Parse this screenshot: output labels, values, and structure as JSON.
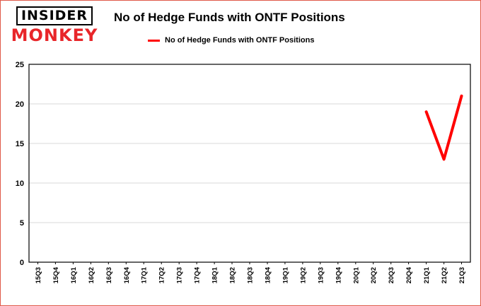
{
  "logo": {
    "line1": "INSIDER",
    "line2": "MONKEY"
  },
  "colors": {
    "line": "#ff0000",
    "logo_red": "#e8262a",
    "grid": "#d9d9d9",
    "axis": "#000000",
    "page_border": "#e05a49"
  },
  "chart_data": {
    "type": "line",
    "title": "No of Hedge Funds with ONTF Positions",
    "xlabel": "",
    "ylabel": "",
    "categories": [
      "15Q3",
      "15Q4",
      "16Q1",
      "16Q2",
      "16Q3",
      "16Q4",
      "17Q1",
      "17Q2",
      "17Q3",
      "17Q4",
      "18Q1",
      "18Q2",
      "18Q3",
      "18Q4",
      "19Q1",
      "19Q2",
      "19Q3",
      "19Q4",
      "20Q1",
      "20Q2",
      "20Q3",
      "20Q4",
      "21Q1",
      "21Q2",
      "21Q3"
    ],
    "series": [
      {
        "name": "No of Hedge Funds with ONTF Positions",
        "color": "#ff0000",
        "values": [
          null,
          null,
          null,
          null,
          null,
          null,
          null,
          null,
          null,
          null,
          null,
          null,
          null,
          null,
          null,
          null,
          null,
          null,
          null,
          null,
          null,
          null,
          19,
          13,
          21
        ]
      }
    ],
    "ylim": [
      0,
      25
    ],
    "yticks": [
      0,
      5,
      10,
      15,
      20,
      25
    ],
    "grid": true,
    "legend_position": "top",
    "x_tick_rotation": 90
  }
}
